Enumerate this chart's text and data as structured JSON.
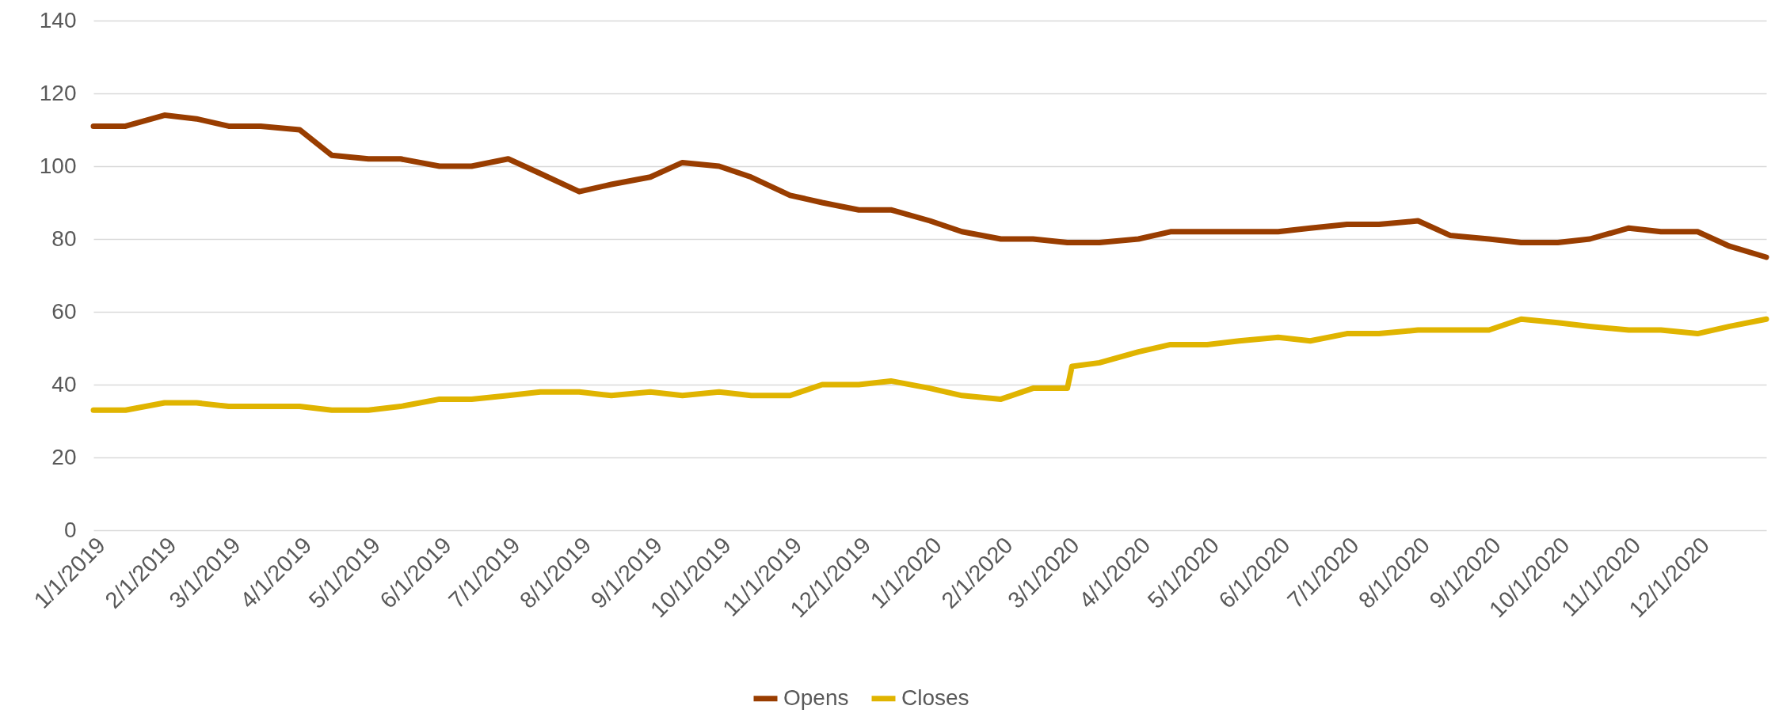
{
  "chart_data": {
    "type": "line",
    "x": [
      "2019-01-01",
      "2019-01-15",
      "2019-02-01",
      "2019-02-15",
      "2019-03-01",
      "2019-03-15",
      "2019-04-01",
      "2019-04-15",
      "2019-05-01",
      "2019-05-15",
      "2019-06-01",
      "2019-06-15",
      "2019-07-01",
      "2019-07-15",
      "2019-08-01",
      "2019-08-15",
      "2019-09-01",
      "2019-09-15",
      "2019-10-01",
      "2019-10-15",
      "2019-11-01",
      "2019-11-15",
      "2019-12-01",
      "2019-12-15",
      "2020-01-01",
      "2020-01-15",
      "2020-02-01",
      "2020-02-15",
      "2020-03-01",
      "2020-03-03",
      "2020-03-15",
      "2020-04-01",
      "2020-04-15",
      "2020-05-01",
      "2020-05-15",
      "2020-06-01",
      "2020-06-15",
      "2020-07-01",
      "2020-07-15",
      "2020-08-01",
      "2020-08-15",
      "2020-09-01",
      "2020-09-15",
      "2020-10-01",
      "2020-10-15",
      "2020-11-01",
      "2020-11-15",
      "2020-12-01",
      "2020-12-15",
      "2020-12-31"
    ],
    "series": [
      {
        "name": "Opens",
        "color": "#993d00",
        "values": [
          111,
          111,
          114,
          113,
          111,
          111,
          110,
          103,
          102,
          102,
          100,
          100,
          102,
          98,
          93,
          95,
          97,
          101,
          100,
          97,
          92,
          90,
          88,
          88,
          85,
          82,
          80,
          80,
          79,
          79,
          79,
          80,
          82,
          82,
          82,
          82,
          83,
          84,
          84,
          85,
          81,
          80,
          79,
          79,
          80,
          83,
          82,
          82,
          78,
          75
        ]
      },
      {
        "name": "Closes",
        "color": "#e0b400",
        "values": [
          33,
          33,
          35,
          35,
          34,
          34,
          34,
          33,
          33,
          34,
          36,
          36,
          37,
          38,
          38,
          37,
          38,
          37,
          38,
          37,
          37,
          40,
          40,
          41,
          39,
          37,
          36,
          39,
          39,
          45,
          46,
          49,
          51,
          51,
          52,
          53,
          52,
          54,
          54,
          55,
          55,
          55,
          58,
          57,
          56,
          55,
          55,
          54,
          56,
          58
        ]
      }
    ],
    "xlim": [
      "2019-01-01",
      "2020-12-31"
    ],
    "xticks": [
      {
        "value": "2019-01-01",
        "label": "1/1/2019"
      },
      {
        "value": "2019-02-01",
        "label": "2/1/2019"
      },
      {
        "value": "2019-03-01",
        "label": "3/1/2019"
      },
      {
        "value": "2019-04-01",
        "label": "4/1/2019"
      },
      {
        "value": "2019-05-01",
        "label": "5/1/2019"
      },
      {
        "value": "2019-06-01",
        "label": "6/1/2019"
      },
      {
        "value": "2019-07-01",
        "label": "7/1/2019"
      },
      {
        "value": "2019-08-01",
        "label": "8/1/2019"
      },
      {
        "value": "2019-09-01",
        "label": "9/1/2019"
      },
      {
        "value": "2019-10-01",
        "label": "10/1/2019"
      },
      {
        "value": "2019-11-01",
        "label": "11/1/2019"
      },
      {
        "value": "2019-12-01",
        "label": "12/1/2019"
      },
      {
        "value": "2020-01-01",
        "label": "1/1/2020"
      },
      {
        "value": "2020-02-01",
        "label": "2/1/2020"
      },
      {
        "value": "2020-03-01",
        "label": "3/1/2020"
      },
      {
        "value": "2020-04-01",
        "label": "4/1/2020"
      },
      {
        "value": "2020-05-01",
        "label": "5/1/2020"
      },
      {
        "value": "2020-06-01",
        "label": "6/1/2020"
      },
      {
        "value": "2020-07-01",
        "label": "7/1/2020"
      },
      {
        "value": "2020-08-01",
        "label": "8/1/2020"
      },
      {
        "value": "2020-09-01",
        "label": "9/1/2020"
      },
      {
        "value": "2020-10-01",
        "label": "10/1/2020"
      },
      {
        "value": "2020-11-01",
        "label": "11/1/2020"
      },
      {
        "value": "2020-12-01",
        "label": "12/1/2020"
      }
    ],
    "ylim": [
      0,
      140
    ],
    "yticks": [
      0,
      20,
      40,
      60,
      80,
      100,
      120,
      140
    ],
    "grid": "y",
    "legend": "bottom"
  }
}
